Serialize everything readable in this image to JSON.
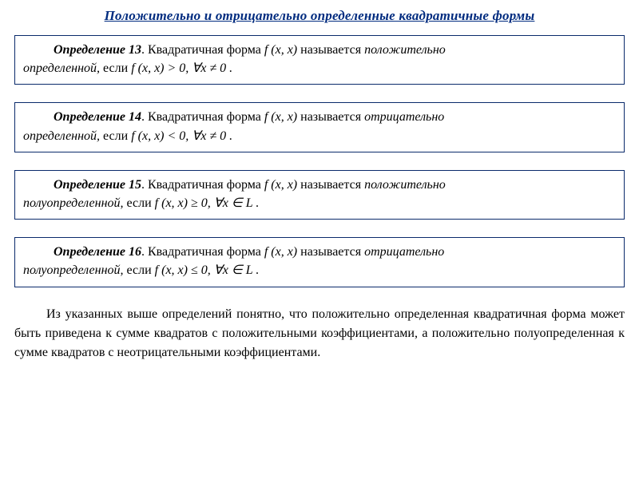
{
  "title": "Положительно и отрицательно определенные квадратичные формы",
  "fx": "f (x, x)",
  "defs": [
    {
      "label": "Определение 13",
      "mid1": ". Квадратичная форма ",
      "mid2": " называется ",
      "term1": "положительно",
      "line2a": "определенной,",
      "line2b": " если ",
      "cond": "f (x, x) > 0,   ∀x ≠ 0 ."
    },
    {
      "label": "Определение 14",
      "mid1": ". Квадратичная форма ",
      "mid2": " называется ",
      "term1": "отрицательно",
      "line2a": "определенной,",
      "line2b": " если ",
      "cond": "f (x, x) < 0,   ∀x ≠ 0 ."
    },
    {
      "label": "Определение 15",
      "mid1": ". Квадратичная форма ",
      "mid2": " называется ",
      "term1": "положительно",
      "line2a": "полуопределенной,",
      "line2b": " если ",
      "cond": "f (x, x) ≥ 0,   ∀x ∈ L ."
    },
    {
      "label": "Определение 16",
      "mid1": ". Квадратичная форма ",
      "mid2": " называется ",
      "term1": "отрицательно",
      "line2a": "полуопределенной,",
      "line2b": " если ",
      "cond": "f (x, x) ≤ 0,   ∀x ∈ L ."
    }
  ],
  "paragraph": "Из указанных выше определений понятно, что положительно определенная квадратичная форма может быть приведена к сумме квадратов с положительными коэффициентами, а положительно полуопределенная к сумме квадратов с неотрицательными коэффициентами.",
  "colors": {
    "title": "#002b7f",
    "border": "#0a2a6b",
    "text": "#000000",
    "background": "#ffffff"
  },
  "fonts": {
    "family": "Times New Roman",
    "title_size_pt": 13,
    "body_size_pt": 12
  }
}
